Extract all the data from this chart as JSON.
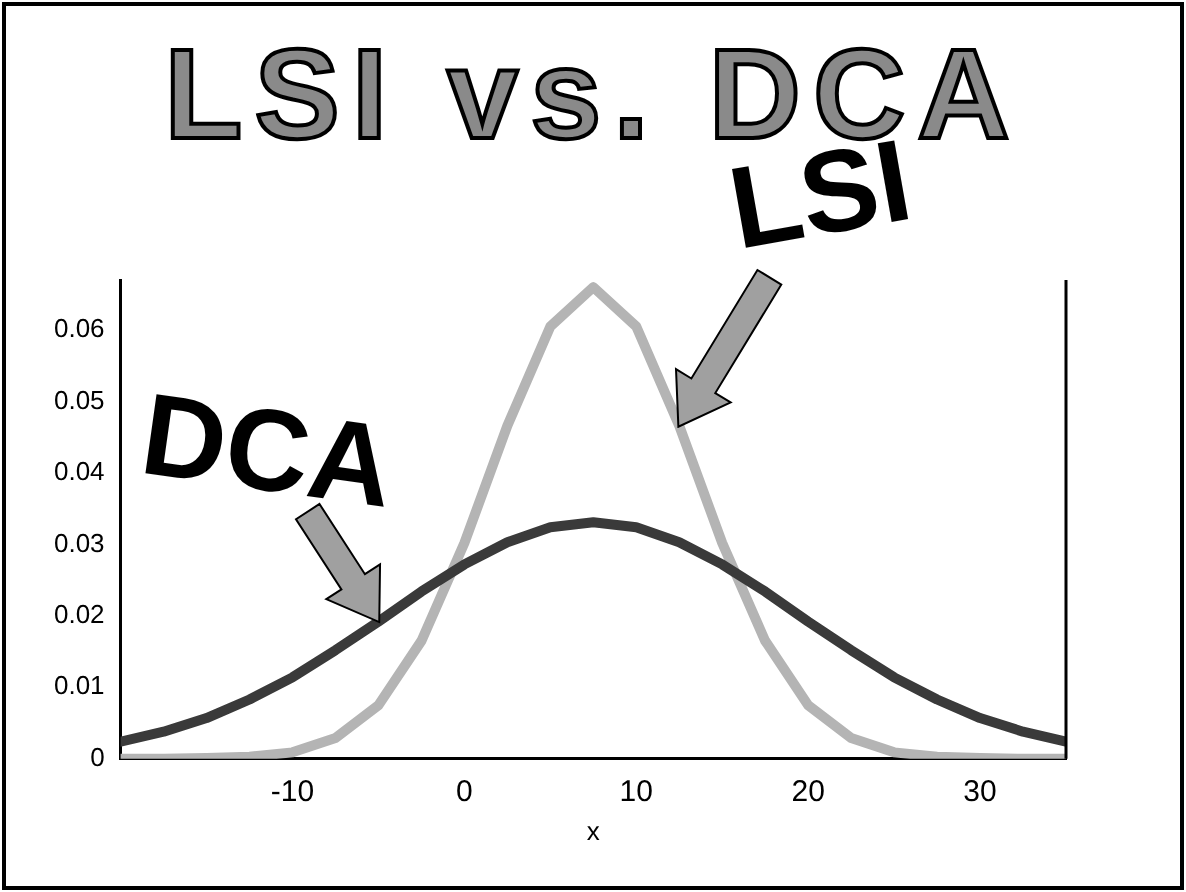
{
  "chart_data": {
    "type": "line",
    "title": "LSI vs. DCA",
    "xlabel": "x",
    "x": [
      -20,
      -17.5,
      -15,
      -12.5,
      -10,
      -7.5,
      -5,
      -2.5,
      0,
      2.5,
      5,
      7.5,
      10,
      12.5,
      15,
      17.5,
      20,
      22.5,
      25,
      27.5,
      30,
      32.5,
      35
    ],
    "series": [
      {
        "name": "DCA",
        "color": "#3a3a3a",
        "values": [
          0.0024,
          0.0038,
          0.0057,
          0.0083,
          0.0114,
          0.0152,
          0.0192,
          0.0234,
          0.0272,
          0.0303,
          0.0324,
          0.0331,
          0.0324,
          0.0303,
          0.0272,
          0.0234,
          0.0192,
          0.0152,
          0.0114,
          0.0083,
          0.0057,
          0.0038,
          0.0024
        ]
      },
      {
        "name": "LSI",
        "color": "#b4b4b4",
        "values": [
          0,
          0,
          0.0001,
          0.0003,
          0.0009,
          0.0029,
          0.0075,
          0.0165,
          0.0302,
          0.0466,
          0.0605,
          0.066,
          0.0605,
          0.0466,
          0.0302,
          0.0165,
          0.0075,
          0.0029,
          0.0009,
          0.0003,
          0.0001,
          0,
          0
        ]
      }
    ],
    "xlim": [
      -20,
      35
    ],
    "xticks": [
      -10,
      0,
      10,
      20,
      30
    ],
    "ylim": [
      0,
      0.067
    ],
    "yticks": [
      0,
      0.01,
      0.02,
      0.03,
      0.04,
      0.05,
      0.06
    ],
    "grid": false,
    "legend": false,
    "marker": "none",
    "line_style": "solid"
  }
}
